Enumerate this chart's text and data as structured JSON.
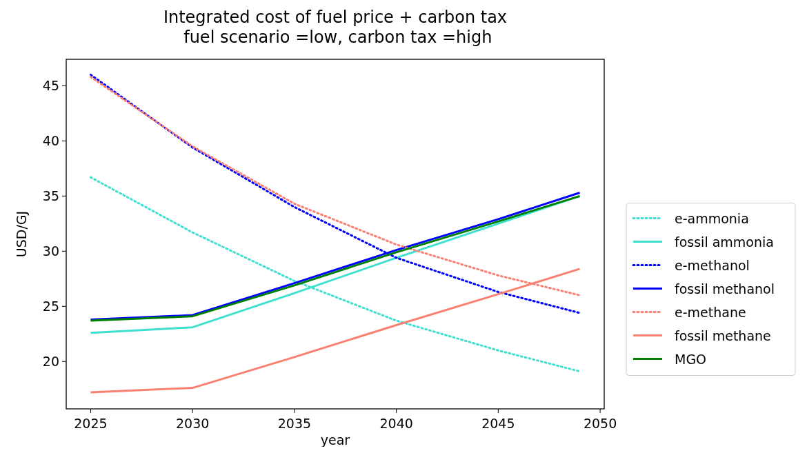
{
  "chart_data": {
    "type": "line",
    "title": "Integrated cost of fuel price + carbon tax\n fuel scenario =low, carbon tax =high",
    "xlabel": "year",
    "ylabel": "USD/GJ",
    "xlim": [
      2023.8,
      2050.2
    ],
    "xticks": [
      2025,
      2030,
      2035,
      2040,
      2045,
      2050
    ],
    "ylim": [
      15.7,
      47.4
    ],
    "yticks": [
      20,
      25,
      30,
      35,
      40,
      45
    ],
    "legend": "right",
    "grid": false,
    "series": [
      {
        "name": "e-ammonia",
        "color": "#40e0d0",
        "line_style": "dotted",
        "x": [
          2025,
          2030,
          2035,
          2040,
          2045,
          2049
        ],
        "values": [
          36.7,
          31.7,
          27.3,
          23.7,
          21.0,
          19.1
        ]
      },
      {
        "name": "fossil ammonia",
        "color": "#40e0d0",
        "line_style": "solid",
        "x": [
          2025,
          2030,
          2035,
          2040,
          2045,
          2049
        ],
        "values": [
          22.6,
          23.1,
          26.2,
          29.4,
          32.5,
          35.0
        ]
      },
      {
        "name": "e-methanol",
        "color": "#0000ff",
        "line_style": "dotted",
        "x": [
          2025,
          2030,
          2035,
          2040,
          2045,
          2049
        ],
        "values": [
          46.0,
          39.4,
          34.0,
          29.4,
          26.3,
          24.4
        ]
      },
      {
        "name": "fossil methanol",
        "color": "#0000ff",
        "line_style": "solid",
        "x": [
          2025,
          2030,
          2035,
          2040,
          2045,
          2049
        ],
        "values": [
          23.8,
          24.2,
          27.1,
          30.1,
          32.9,
          35.3
        ]
      },
      {
        "name": "e-methane",
        "color": "#fa8072",
        "line_style": "dotted",
        "x": [
          2025,
          2030,
          2035,
          2040,
          2045,
          2049
        ],
        "values": [
          45.8,
          39.5,
          34.3,
          30.6,
          27.8,
          26.0
        ]
      },
      {
        "name": "fossil methane",
        "color": "#fa8072",
        "line_style": "solid",
        "x": [
          2025,
          2030,
          2035,
          2040,
          2045,
          2049
        ],
        "values": [
          17.2,
          17.6,
          20.4,
          23.3,
          26.1,
          28.4
        ]
      },
      {
        "name": "MGO",
        "color": "#008000",
        "line_style": "solid",
        "x": [
          2025,
          2030,
          2035,
          2040,
          2045,
          2049
        ],
        "values": [
          23.7,
          24.1,
          26.9,
          29.9,
          32.7,
          35.0
        ]
      }
    ]
  }
}
